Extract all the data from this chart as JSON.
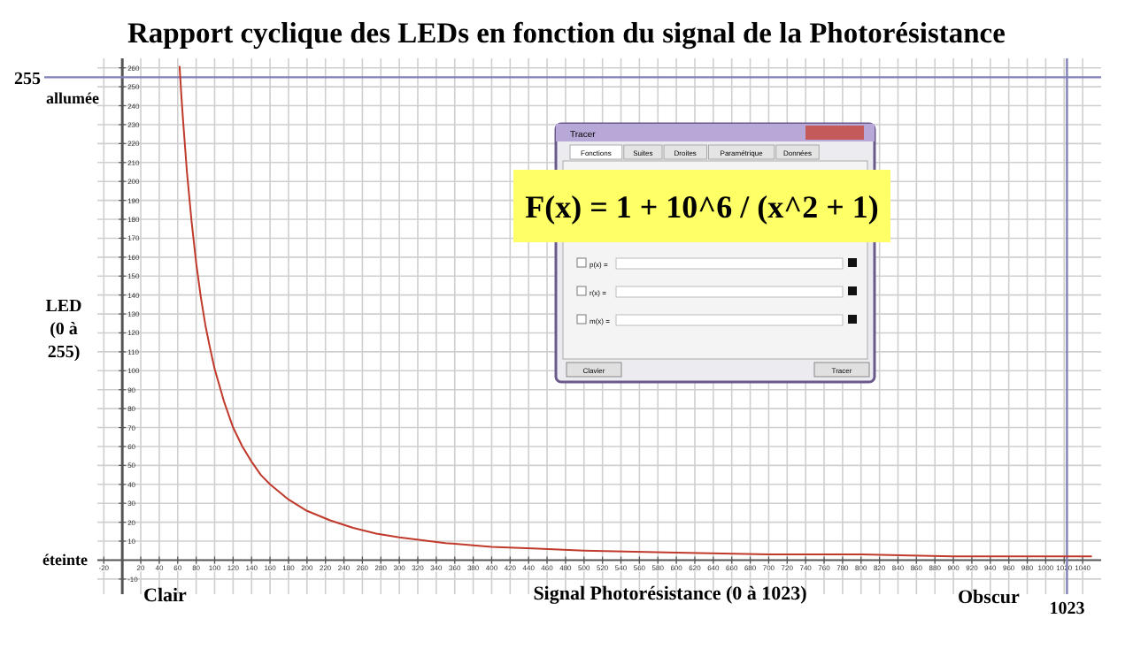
{
  "chart_data": {
    "type": "line",
    "title": "Rapport cyclique des LEDs en fonction du signal de la Photorésistance",
    "xlabel": "Signal Photorésistance (0 à 1023)",
    "ylabel": "LED (0 à 255)",
    "series": [
      {
        "color": "#c0392b",
        "x": [
          62,
          64,
          66,
          70,
          75,
          80,
          85,
          90,
          95,
          100,
          110,
          120,
          130,
          140,
          150,
          160,
          180,
          200,
          225,
          250,
          275,
          300,
          350,
          400,
          450,
          500,
          600,
          700,
          800,
          900,
          1000,
          1050
        ],
        "values": [
          261,
          245,
          231,
          205,
          179,
          157,
          139,
          124,
          112,
          101,
          84,
          70,
          60,
          52,
          45,
          40,
          32,
          26,
          21,
          17,
          14,
          12,
          9,
          7,
          6,
          5,
          4,
          3,
          3,
          2,
          2,
          2
        ]
      }
    ],
    "xlim": [
      -27,
      1060
    ],
    "ylim": [
      -18,
      265
    ],
    "xticks": [
      -20,
      20,
      40,
      60,
      80,
      100,
      120,
      140,
      160,
      180,
      200,
      220,
      240,
      260,
      280,
      300,
      320,
      340,
      360,
      380,
      400,
      420,
      440,
      460,
      480,
      500,
      520,
      540,
      560,
      580,
      600,
      620,
      640,
      660,
      680,
      700,
      720,
      740,
      760,
      780,
      800,
      820,
      840,
      860,
      880,
      900,
      920,
      940,
      960,
      980,
      1000,
      1020,
      1040
    ],
    "yticks": [
      -10,
      10,
      20,
      30,
      40,
      50,
      60,
      70,
      80,
      90,
      100,
      110,
      120,
      130,
      140,
      150,
      160,
      170,
      180,
      190,
      200,
      210,
      220,
      230,
      240,
      250,
      260
    ],
    "grid": true,
    "marker": "none",
    "line_style": "solid",
    "ref_lines": [
      {
        "axis": "y",
        "value": 255,
        "label": "255",
        "color": "#8080b8"
      },
      {
        "axis": "x",
        "value": 1023,
        "label": "1023",
        "color": "#8080b8"
      }
    ],
    "annotations": [
      "allumée",
      "éteinte",
      "Clair",
      "Obscur",
      "F(x) = 1 + 10^6 / (x^2 + 1)",
      "Tracer",
      "Fonctions",
      "Suites",
      "Droites",
      "Paramétrique",
      "Données",
      "p(x) =",
      "r(x) =",
      "m(x) =",
      "Clavier",
      "Tracer"
    ]
  }
}
